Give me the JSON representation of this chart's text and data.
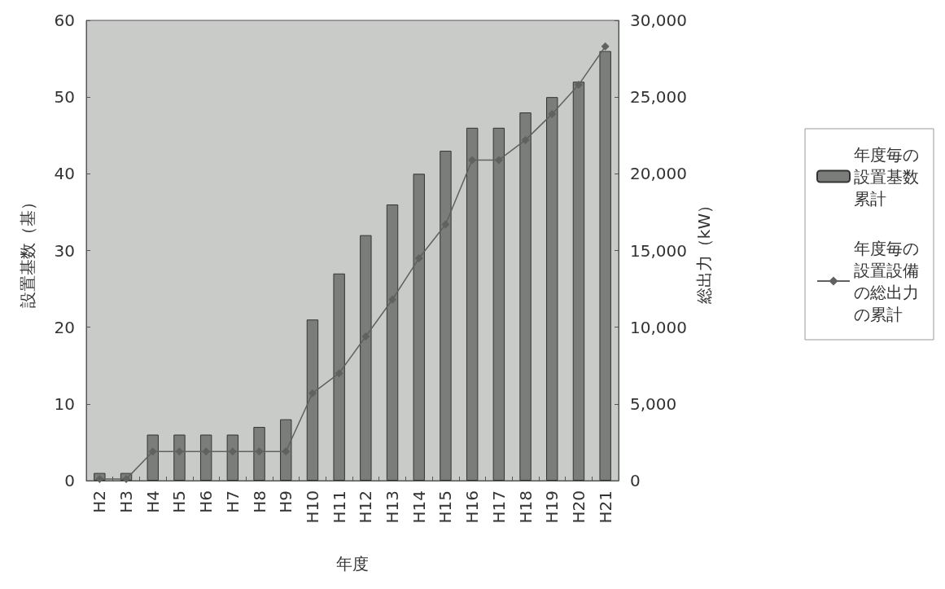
{
  "chart_data": {
    "type": "bar",
    "xlabel": "年度",
    "ylabel": "設置基数（基）",
    "y2label": "総出力（kW）",
    "categories": [
      "H2",
      "H3",
      "H4",
      "H5",
      "H6",
      "H7",
      "H8",
      "H9",
      "H10",
      "H11",
      "H12",
      "H13",
      "H14",
      "H15",
      "H16",
      "H17",
      "H18",
      "H19",
      "H20",
      "H21"
    ],
    "series": [
      {
        "name": "年度毎の設置基数累計",
        "color": "#7a7d7a",
        "values": [
          1,
          1,
          6,
          6,
          6,
          6,
          7,
          8,
          21,
          27,
          32,
          36,
          40,
          43,
          46,
          46,
          48,
          50,
          52,
          56
        ]
      },
      {
        "name": "年度毎の設置設備の総出力の累計",
        "type": "line",
        "axis": "y2",
        "color": "#5f625f",
        "values": [
          100,
          100,
          1900,
          1900,
          1900,
          1900,
          1900,
          1900,
          5700,
          7000,
          9400,
          11800,
          14500,
          16700,
          20900,
          20900,
          22200,
          23900,
          25800,
          28300
        ]
      }
    ],
    "ylim": [
      0,
      60
    ],
    "yticks": [
      0,
      10,
      20,
      30,
      40,
      50,
      60
    ],
    "y2lim": [
      0,
      30000
    ],
    "y2ticks": [
      0,
      {
        "value": 5000,
        "label": "5,000"
      },
      {
        "value": 10000,
        "label": "10,000"
      },
      {
        "value": 15000,
        "label": "15,000"
      },
      {
        "value": 20000,
        "label": "20,000"
      },
      {
        "value": 25000,
        "label": "25,000"
      },
      {
        "value": 30000,
        "label": "30,000"
      }
    ],
    "grid": false,
    "legend": "right",
    "marker": "diamond",
    "line_style": "solid"
  }
}
